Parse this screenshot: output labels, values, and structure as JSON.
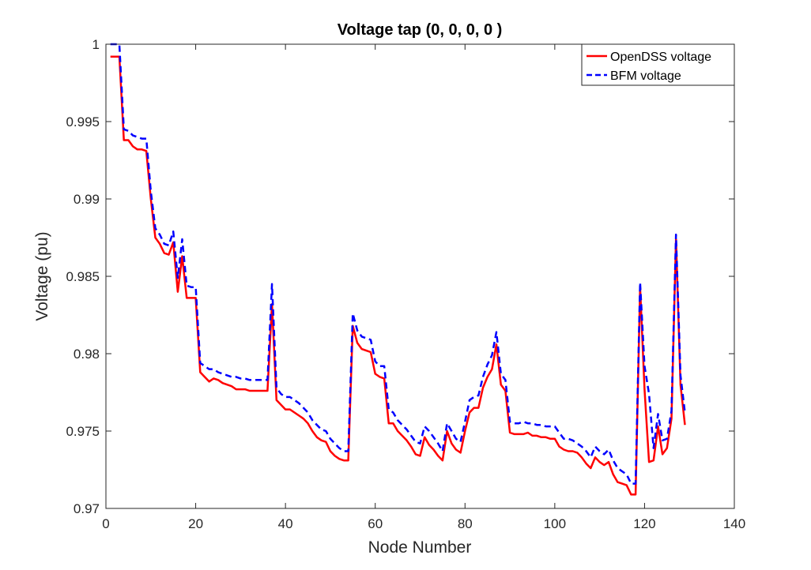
{
  "chart_data": {
    "type": "line",
    "title": "Voltage tap (0, 0, 0, 0 )",
    "xlabel": "Node Number",
    "ylabel": "Voltage (pu)",
    "xlim": [
      0,
      140
    ],
    "ylim": [
      0.97,
      1.0
    ],
    "xticks": [
      0,
      20,
      40,
      60,
      80,
      100,
      120,
      140
    ],
    "xtick_labels": [
      "0",
      "20",
      "40",
      "60",
      "80",
      "100",
      "120",
      "140"
    ],
    "yticks": [
      0.97,
      0.975,
      0.98,
      0.985,
      0.99,
      0.995,
      1.0
    ],
    "ytick_labels": [
      "0.97",
      "0.975",
      "0.98",
      "0.985",
      "0.99",
      "0.995",
      "1"
    ],
    "grid": false,
    "legend_position": "top-right",
    "series": [
      {
        "name": "OpenDSS voltage",
        "color": "#ff0000",
        "style": "solid",
        "x": [
          1,
          2,
          3,
          4,
          5,
          6,
          7,
          8,
          9,
          10,
          11,
          12,
          13,
          14,
          15,
          16,
          17,
          18,
          19,
          20,
          21,
          22,
          23,
          24,
          25,
          26,
          27,
          28,
          29,
          30,
          31,
          32,
          33,
          34,
          35,
          36,
          37,
          38,
          39,
          40,
          41,
          42,
          43,
          44,
          45,
          46,
          47,
          48,
          49,
          50,
          51,
          52,
          53,
          54,
          55,
          56,
          57,
          58,
          59,
          60,
          61,
          62,
          63,
          64,
          65,
          66,
          67,
          68,
          69,
          70,
          71,
          72,
          73,
          74,
          75,
          76,
          77,
          78,
          79,
          80,
          81,
          82,
          83,
          84,
          85,
          86,
          87,
          88,
          89,
          90,
          91,
          92,
          93,
          94,
          95,
          96,
          97,
          98,
          99,
          100,
          101,
          102,
          103,
          104,
          105,
          106,
          107,
          108,
          109,
          110,
          111,
          112,
          113,
          114,
          115,
          116,
          117,
          118,
          119,
          120,
          121,
          122,
          123,
          124,
          125,
          126,
          127,
          128,
          129
        ],
        "y": [
          0.9992,
          0.9992,
          0.9992,
          0.9938,
          0.9938,
          0.9934,
          0.9932,
          0.9932,
          0.9931,
          0.99,
          0.9875,
          0.9871,
          0.9865,
          0.9864,
          0.9872,
          0.984,
          0.9863,
          0.9836,
          0.9836,
          0.9836,
          0.9788,
          0.9785,
          0.9782,
          0.9784,
          0.9783,
          0.9781,
          0.978,
          0.9779,
          0.9777,
          0.9777,
          0.9777,
          0.9776,
          0.9776,
          0.9776,
          0.9776,
          0.9776,
          0.9832,
          0.977,
          0.9767,
          0.9764,
          0.9764,
          0.9762,
          0.976,
          0.9758,
          0.9755,
          0.975,
          0.9746,
          0.9744,
          0.9743,
          0.9737,
          0.9734,
          0.9732,
          0.9731,
          0.9731,
          0.9818,
          0.9807,
          0.9803,
          0.9802,
          0.9801,
          0.9787,
          0.9785,
          0.9784,
          0.9755,
          0.9755,
          0.975,
          0.9747,
          0.9744,
          0.974,
          0.9735,
          0.9734,
          0.9746,
          0.9741,
          0.9738,
          0.9734,
          0.9731,
          0.975,
          0.9742,
          0.9738,
          0.9736,
          0.975,
          0.9762,
          0.9765,
          0.9765,
          0.9778,
          0.9785,
          0.979,
          0.9806,
          0.978,
          0.9776,
          0.9749,
          0.9748,
          0.9748,
          0.9748,
          0.9749,
          0.9747,
          0.9747,
          0.9746,
          0.9746,
          0.9745,
          0.9745,
          0.974,
          0.9738,
          0.9737,
          0.9737,
          0.9736,
          0.9733,
          0.9729,
          0.9726,
          0.9733,
          0.973,
          0.9728,
          0.973,
          0.9722,
          0.9717,
          0.9716,
          0.9715,
          0.9709,
          0.9709,
          0.9843,
          0.9777,
          0.973,
          0.9731,
          0.9753,
          0.9735,
          0.9739,
          0.9758,
          0.9874,
          0.978,
          0.9754
        ]
      },
      {
        "name": "BFM voltage",
        "color": "#0000ff",
        "style": "dashed",
        "x": [
          1,
          2,
          3,
          4,
          5,
          6,
          7,
          8,
          9,
          10,
          11,
          12,
          13,
          14,
          15,
          16,
          17,
          18,
          19,
          20,
          21,
          22,
          23,
          24,
          25,
          26,
          27,
          28,
          29,
          30,
          31,
          32,
          33,
          34,
          35,
          36,
          37,
          38,
          39,
          40,
          41,
          42,
          43,
          44,
          45,
          46,
          47,
          48,
          49,
          50,
          51,
          52,
          53,
          54,
          55,
          56,
          57,
          58,
          59,
          60,
          61,
          62,
          63,
          64,
          65,
          66,
          67,
          68,
          69,
          70,
          71,
          72,
          73,
          74,
          75,
          76,
          77,
          78,
          79,
          80,
          81,
          82,
          83,
          84,
          85,
          86,
          87,
          88,
          89,
          90,
          91,
          92,
          93,
          94,
          95,
          96,
          97,
          98,
          99,
          100,
          101,
          102,
          103,
          104,
          105,
          106,
          107,
          108,
          109,
          110,
          111,
          112,
          113,
          114,
          115,
          116,
          117,
          118,
          119,
          120,
          121,
          122,
          123,
          124,
          125,
          126,
          127,
          128,
          129
        ],
        "y": [
          1.0,
          1.0,
          1.0,
          0.9945,
          0.9944,
          0.9941,
          0.994,
          0.9939,
          0.9939,
          0.9905,
          0.9881,
          0.9877,
          0.9871,
          0.987,
          0.9879,
          0.9849,
          0.9874,
          0.9844,
          0.9843,
          0.9843,
          0.9794,
          0.9792,
          0.979,
          0.979,
          0.9788,
          0.9787,
          0.9786,
          0.9785,
          0.9785,
          0.9784,
          0.9784,
          0.9783,
          0.9783,
          0.9783,
          0.9783,
          0.9783,
          0.9845,
          0.9778,
          0.9774,
          0.9772,
          0.9772,
          0.977,
          0.9768,
          0.9765,
          0.9762,
          0.9757,
          0.9754,
          0.9751,
          0.975,
          0.9745,
          0.9742,
          0.9739,
          0.9737,
          0.9737,
          0.9826,
          0.9815,
          0.9811,
          0.981,
          0.9809,
          0.9795,
          0.9792,
          0.9792,
          0.9764,
          0.9762,
          0.9757,
          0.9754,
          0.9751,
          0.9747,
          0.9743,
          0.9742,
          0.9753,
          0.975,
          0.9746,
          0.9742,
          0.9737,
          0.9755,
          0.975,
          0.9745,
          0.9743,
          0.9756,
          0.977,
          0.9772,
          0.9773,
          0.9785,
          0.9793,
          0.9799,
          0.9814,
          0.9787,
          0.9783,
          0.9756,
          0.9755,
          0.9755,
          0.9756,
          0.9755,
          0.9755,
          0.9754,
          0.9754,
          0.9753,
          0.9753,
          0.9753,
          0.9749,
          0.9745,
          0.9745,
          0.9744,
          0.9742,
          0.974,
          0.9737,
          0.9733,
          0.974,
          0.9737,
          0.9735,
          0.9738,
          0.9731,
          0.9726,
          0.9724,
          0.9722,
          0.9716,
          0.9716,
          0.9846,
          0.9792,
          0.9774,
          0.9739,
          0.9761,
          0.9744,
          0.9745,
          0.9763,
          0.9877,
          0.9786,
          0.9762
        ]
      }
    ]
  }
}
